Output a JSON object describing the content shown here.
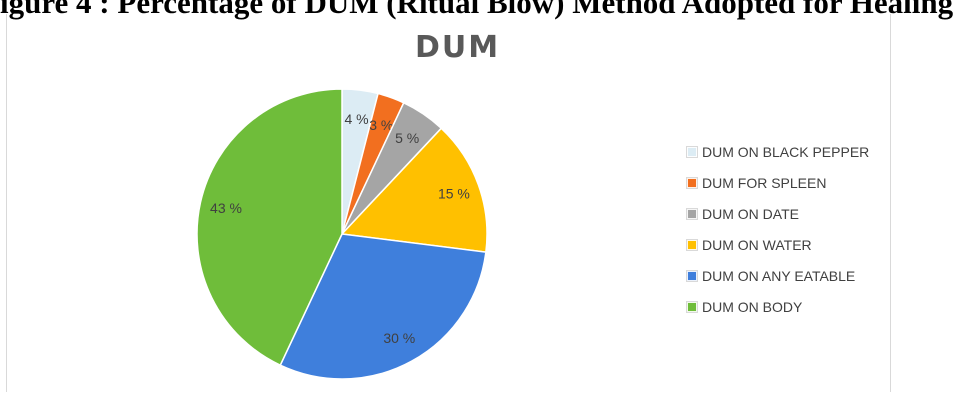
{
  "caption_fragment": "igure 4 : Percentage of DUM (Ritual Blow) Method Adopted for Healing",
  "chart_data": {
    "type": "pie",
    "title": "DUM",
    "legend_position": "right",
    "slices": [
      {
        "name": "DUM ON BLACK PEPPER",
        "value": 4,
        "label": "4 %",
        "color": "#dcecf4"
      },
      {
        "name": "DUM FOR SPLEEN",
        "value": 3,
        "label": "3 %",
        "color": "#f26f1f"
      },
      {
        "name": "DUM ON DATE",
        "value": 5,
        "label": "5 %",
        "color": "#a5a5a5"
      },
      {
        "name": "DUM ON WATER",
        "value": 15,
        "label": "15 %",
        "color": "#ffc000"
      },
      {
        "name": "DUM ON ANY EATABLE",
        "value": 30,
        "label": "30 %",
        "color": "#3f7fdc"
      },
      {
        "name": "DUM ON BODY",
        "value": 43,
        "label": "43 %",
        "color": "#6fbd3a"
      }
    ]
  }
}
